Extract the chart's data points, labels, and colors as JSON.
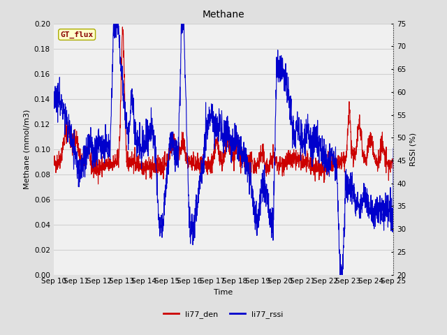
{
  "title": "Methane",
  "xlabel": "Time",
  "ylabel_left": "Methane (mmol/m3)",
  "ylabel_right": "RSSI (%)",
  "ylim_left": [
    0.0,
    0.2
  ],
  "ylim_right": [
    20,
    75
  ],
  "yticks_left": [
    0.0,
    0.02,
    0.04,
    0.06,
    0.08,
    0.1,
    0.12,
    0.14,
    0.16,
    0.18,
    0.2
  ],
  "yticks_right": [
    20,
    25,
    30,
    35,
    40,
    45,
    50,
    55,
    60,
    65,
    70,
    75
  ],
  "xtick_labels": [
    "Sep 10",
    "Sep 11",
    "Sep 12",
    "Sep 13",
    "Sep 14",
    "Sep 15",
    "Sep 16",
    "Sep 17",
    "Sep 18",
    "Sep 19",
    "Sep 20",
    "Sep 21",
    "Sep 22",
    "Sep 23",
    "Sep 24",
    "Sep 25"
  ],
  "color_red": "#cc0000",
  "color_blue": "#0000cc",
  "legend_box_facecolor": "#ffffcc",
  "legend_box_edge": "#aaaa00",
  "annotation_text": "GT_flux",
  "annotation_color": "#880000",
  "bg_color": "#e0e0e0",
  "plot_bg_color": "#f0f0f0",
  "grid_color": "#d0d0d0",
  "line_width": 0.8,
  "title_fontsize": 10,
  "label_fontsize": 8,
  "tick_fontsize": 7.5,
  "annot_fontsize": 8
}
